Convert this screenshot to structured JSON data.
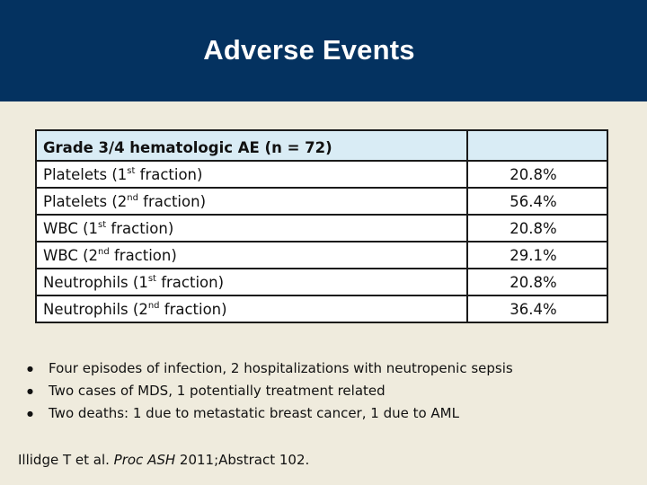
{
  "slide": {
    "title": "Adverse Events"
  },
  "table": {
    "header": "Grade 3/4 hematologic AE (n = 72)",
    "header_value": "",
    "rows": [
      {
        "name": "Platelets (1",
        "sup": "st",
        "tail": " fraction)",
        "value": "20.8%"
      },
      {
        "name": "Platelets (2",
        "sup": "nd",
        "tail": " fraction)",
        "value": "56.4%"
      },
      {
        "name": "WBC (1",
        "sup": "st",
        "tail": " fraction)",
        "value": "20.8%"
      },
      {
        "name": "WBC (2",
        "sup": "nd",
        "tail": " fraction)",
        "value": "29.1%"
      },
      {
        "name": "Neutrophils (1",
        "sup": "st",
        "tail": " fraction)",
        "value": "20.8%"
      },
      {
        "name": "Neutrophils (2",
        "sup": "nd",
        "tail": " fraction)",
        "value": "36.4%"
      }
    ]
  },
  "bullets": [
    "Four episodes of infection, 2 hospitalizations with neutropenic sepsis",
    "Two cases of MDS, 1 potentially treatment related",
    "Two deaths: 1 due to metastatic breast cancer, 1 due to AML"
  ],
  "reference": {
    "authors": "Illidge T et al. ",
    "journal": "Proc ASH",
    "rest": " 2011;Abstract 102."
  }
}
